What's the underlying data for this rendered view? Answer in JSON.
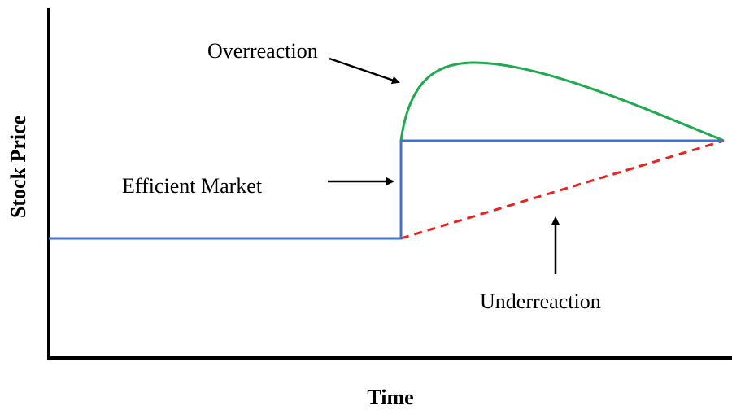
{
  "axes": {
    "y_label": "Stock Price",
    "x_label": "Time"
  },
  "annotations": {
    "overreaction": "Overreaction",
    "efficient_market": "Efficient Market",
    "underreaction": "Underreaction"
  }
}
